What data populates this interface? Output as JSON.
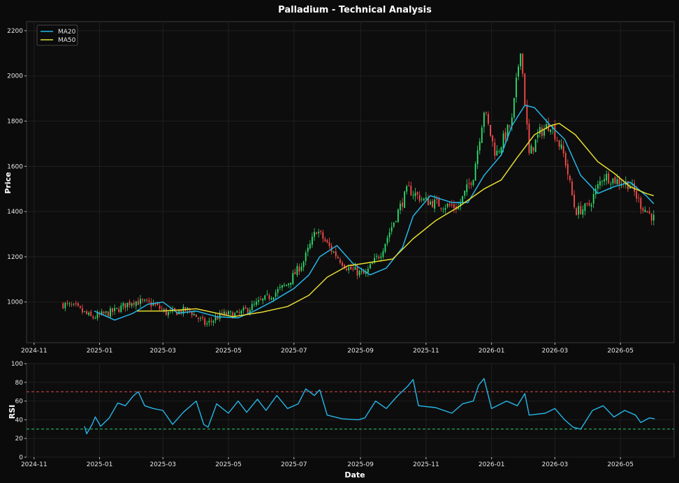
{
  "chart_data": [
    {
      "type": "candlestick",
      "title": "Palladium - Technical Analysis",
      "xlabel": "",
      "ylabel": "Price",
      "ylim": [
        820,
        2240
      ],
      "xlim": [
        "2024-10-25",
        "2026-06-20"
      ],
      "x_ticks": [
        "2024-11",
        "2025-01",
        "2025-03",
        "2025-05",
        "2025-07",
        "2025-09",
        "2025-11",
        "2026-01",
        "2026-03",
        "2026-05"
      ],
      "y_ticks": [
        1000,
        1200,
        1400,
        1600,
        1800,
        2000,
        2200
      ],
      "grid": true,
      "legend_position": "top-left",
      "colors": {
        "up": "#2ee06d",
        "down": "#ff4d4d",
        "ma20": "#26b6e8",
        "ma50": "#e6dc32"
      },
      "price_path": [
        [
          "2024-11-28",
          990
        ],
        [
          "2024-12-10",
          975
        ],
        [
          "2024-12-25",
          930
        ],
        [
          "2025-01-15",
          960
        ],
        [
          "2025-02-01",
          1005
        ],
        [
          "2025-02-20",
          990
        ],
        [
          "2025-03-05",
          950
        ],
        [
          "2025-03-25",
          965
        ],
        [
          "2025-04-10",
          900
        ],
        [
          "2025-04-25",
          945
        ],
        [
          "2025-05-10",
          945
        ],
        [
          "2025-05-25",
          985
        ],
        [
          "2025-06-10",
          1030
        ],
        [
          "2025-06-25",
          1080
        ],
        [
          "2025-07-10",
          1180
        ],
        [
          "2025-07-22",
          1320
        ],
        [
          "2025-08-05",
          1230
        ],
        [
          "2025-08-20",
          1150
        ],
        [
          "2025-09-05",
          1120
        ],
        [
          "2025-09-20",
          1220
        ],
        [
          "2025-10-05",
          1390
        ],
        [
          "2025-10-15",
          1500
        ],
        [
          "2025-10-30",
          1450
        ],
        [
          "2025-11-15",
          1430
        ],
        [
          "2025-12-01",
          1420
        ],
        [
          "2025-12-15",
          1560
        ],
        [
          "2025-12-25",
          1850
        ],
        [
          "2026-01-05",
          1650
        ],
        [
          "2026-01-20",
          1800
        ],
        [
          "2026-01-28",
          2130
        ],
        [
          "2026-02-05",
          1650
        ],
        [
          "2026-02-15",
          1750
        ],
        [
          "2026-02-25",
          1790
        ],
        [
          "2026-03-10",
          1640
        ],
        [
          "2026-03-20",
          1400
        ],
        [
          "2026-04-01",
          1420
        ],
        [
          "2026-04-15",
          1560
        ],
        [
          "2026-04-25",
          1540
        ],
        [
          "2026-05-10",
          1520
        ],
        [
          "2026-05-20",
          1430
        ],
        [
          "2026-06-01",
          1370
        ]
      ],
      "series": [
        {
          "name": "MA20",
          "points": [
            [
              "2024-12-27",
              960
            ],
            [
              "2025-01-15",
              920
            ],
            [
              "2025-02-01",
              950
            ],
            [
              "2025-02-15",
              990
            ],
            [
              "2025-03-01",
              1000
            ],
            [
              "2025-03-15",
              950
            ],
            [
              "2025-04-01",
              960
            ],
            [
              "2025-04-20",
              935
            ],
            [
              "2025-05-10",
              930
            ],
            [
              "2025-05-25",
              960
            ],
            [
              "2025-06-10",
              1000
            ],
            [
              "2025-07-01",
              1060
            ],
            [
              "2025-07-15",
              1120
            ],
            [
              "2025-07-25",
              1200
            ],
            [
              "2025-08-10",
              1250
            ],
            [
              "2025-08-25",
              1170
            ],
            [
              "2025-09-10",
              1120
            ],
            [
              "2025-09-25",
              1150
            ],
            [
              "2025-10-10",
              1240
            ],
            [
              "2025-10-20",
              1380
            ],
            [
              "2025-11-05",
              1470
            ],
            [
              "2025-11-25",
              1440
            ],
            [
              "2025-12-10",
              1440
            ],
            [
              "2025-12-25",
              1560
            ],
            [
              "2026-01-10",
              1650
            ],
            [
              "2026-01-20",
              1780
            ],
            [
              "2026-02-01",
              1870
            ],
            [
              "2026-02-10",
              1860
            ],
            [
              "2026-02-25",
              1780
            ],
            [
              "2026-03-10",
              1720
            ],
            [
              "2026-03-25",
              1560
            ],
            [
              "2026-04-10",
              1480
            ],
            [
              "2026-04-25",
              1510
            ],
            [
              "2026-05-10",
              1530
            ],
            [
              "2026-05-25",
              1470
            ],
            [
              "2026-06-01",
              1435
            ]
          ]
        },
        {
          "name": "MA50",
          "points": [
            [
              "2025-02-05",
              960
            ],
            [
              "2025-03-01",
              960
            ],
            [
              "2025-04-01",
              970
            ],
            [
              "2025-05-05",
              935
            ],
            [
              "2025-06-01",
              955
            ],
            [
              "2025-06-25",
              980
            ],
            [
              "2025-07-15",
              1030
            ],
            [
              "2025-08-01",
              1110
            ],
            [
              "2025-08-20",
              1160
            ],
            [
              "2025-09-10",
              1175
            ],
            [
              "2025-10-01",
              1190
            ],
            [
              "2025-10-20",
              1280
            ],
            [
              "2025-11-10",
              1360
            ],
            [
              "2025-12-01",
              1420
            ],
            [
              "2025-12-25",
              1500
            ],
            [
              "2026-01-10",
              1540
            ],
            [
              "2026-01-25",
              1640
            ],
            [
              "2026-02-10",
              1740
            ],
            [
              "2026-02-25",
              1780
            ],
            [
              "2026-03-05",
              1790
            ],
            [
              "2026-03-20",
              1740
            ],
            [
              "2026-04-10",
              1620
            ],
            [
              "2026-04-25",
              1570
            ],
            [
              "2026-05-10",
              1510
            ],
            [
              "2026-05-25",
              1480
            ],
            [
              "2026-06-01",
              1470
            ]
          ]
        }
      ]
    },
    {
      "type": "line",
      "title": "",
      "xlabel": "Date",
      "ylabel": "RSI",
      "ylim": [
        0,
        100
      ],
      "xlim": [
        "2024-10-25",
        "2026-06-20"
      ],
      "x_ticks": [
        "2024-11",
        "2025-01",
        "2025-03",
        "2025-05",
        "2025-07",
        "2025-09",
        "2025-11",
        "2026-01",
        "2026-03",
        "2026-05"
      ],
      "y_ticks": [
        0,
        20,
        40,
        60,
        80,
        100
      ],
      "grid": true,
      "reference_lines": [
        {
          "value": 70,
          "color": "#e04848"
        },
        {
          "value": 30,
          "color": "#2ecc71"
        }
      ],
      "series": [
        {
          "name": "RSI",
          "color": "#26b6e8",
          "points": [
            [
              "2024-12-18",
              33
            ],
            [
              "2024-12-20",
              25
            ],
            [
              "2024-12-25",
              35
            ],
            [
              "2024-12-28",
              43
            ],
            [
              "2025-01-02",
              33
            ],
            [
              "2025-01-10",
              42
            ],
            [
              "2025-01-18",
              58
            ],
            [
              "2025-01-25",
              55
            ],
            [
              "2025-02-01",
              65
            ],
            [
              "2025-02-06",
              70
            ],
            [
              "2025-02-12",
              55
            ],
            [
              "2025-02-20",
              52
            ],
            [
              "2025-03-01",
              50
            ],
            [
              "2025-03-10",
              35
            ],
            [
              "2025-03-20",
              48
            ],
            [
              "2025-04-01",
              60
            ],
            [
              "2025-04-08",
              35
            ],
            [
              "2025-04-12",
              32
            ],
            [
              "2025-04-20",
              57
            ],
            [
              "2025-05-01",
              47
            ],
            [
              "2025-05-10",
              60
            ],
            [
              "2025-05-18",
              48
            ],
            [
              "2025-05-28",
              62
            ],
            [
              "2025-06-05",
              50
            ],
            [
              "2025-06-15",
              66
            ],
            [
              "2025-06-25",
              52
            ],
            [
              "2025-07-05",
              57
            ],
            [
              "2025-07-12",
              73
            ],
            [
              "2025-07-20",
              66
            ],
            [
              "2025-07-25",
              72
            ],
            [
              "2025-08-01",
              45
            ],
            [
              "2025-08-15",
              41
            ],
            [
              "2025-08-30",
              40
            ],
            [
              "2025-09-05",
              42
            ],
            [
              "2025-09-15",
              60
            ],
            [
              "2025-09-25",
              52
            ],
            [
              "2025-10-05",
              65
            ],
            [
              "2025-10-15",
              76
            ],
            [
              "2025-10-20",
              83
            ],
            [
              "2025-10-25",
              55
            ],
            [
              "2025-11-10",
              53
            ],
            [
              "2025-11-25",
              47
            ],
            [
              "2025-12-05",
              57
            ],
            [
              "2025-12-15",
              60
            ],
            [
              "2025-12-20",
              77
            ],
            [
              "2025-12-25",
              84
            ],
            [
              "2026-01-01",
              52
            ],
            [
              "2026-01-15",
              60
            ],
            [
              "2026-01-25",
              55
            ],
            [
              "2026-02-01",
              68
            ],
            [
              "2026-02-05",
              45
            ],
            [
              "2026-02-20",
              47
            ],
            [
              "2026-03-01",
              52
            ],
            [
              "2026-03-10",
              40
            ],
            [
              "2026-03-18",
              32
            ],
            [
              "2026-03-25",
              30
            ],
            [
              "2026-04-05",
              50
            ],
            [
              "2026-04-15",
              55
            ],
            [
              "2026-04-25",
              43
            ],
            [
              "2026-05-05",
              50
            ],
            [
              "2026-05-15",
              45
            ],
            [
              "2026-05-20",
              37
            ],
            [
              "2026-05-28",
              42
            ],
            [
              "2026-06-02",
              41
            ]
          ]
        }
      ]
    }
  ]
}
